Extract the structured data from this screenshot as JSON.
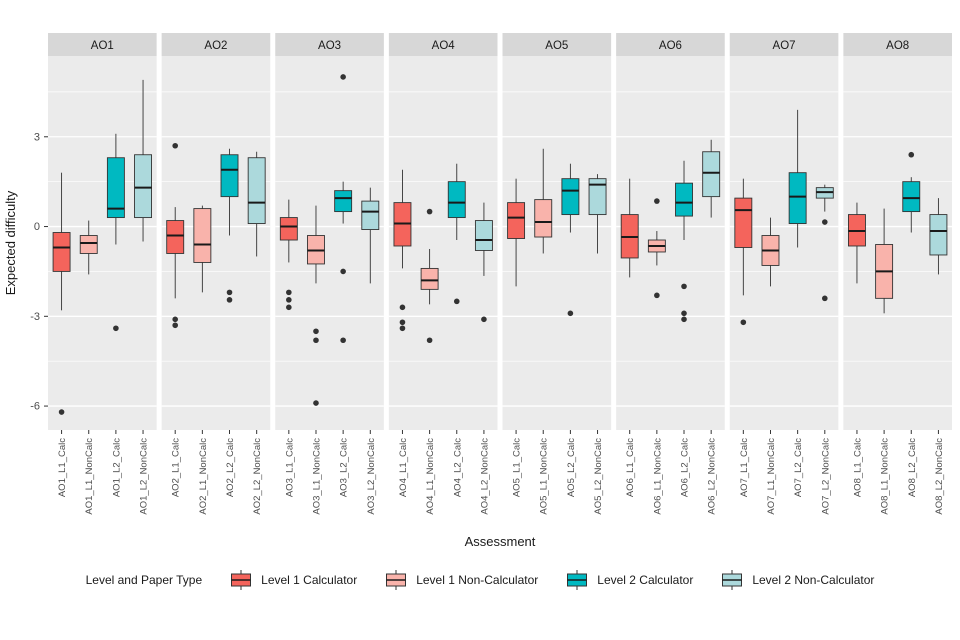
{
  "chart_data": {
    "type": "boxplot",
    "xlabel": "Assessment",
    "ylabel": "Expected difficulty",
    "ylim": [
      -6.8,
      5.7
    ],
    "yticks": [
      3,
      0,
      -3,
      -6
    ],
    "minor_gridlines": [
      4.5,
      1.5,
      -1.5,
      -4.5
    ],
    "panel_bg": "#EBEBEB",
    "strip_bg": "#D7D7D7",
    "gridline_color": "#FFFFFF",
    "box_outline": "#333333",
    "median_color": "#1a1a1a",
    "outlier_color": "#333333",
    "colors": {
      "level1_calc": "#F4645C",
      "level1_noncalc": "#F9B3AB",
      "level2_calc": "#00B9C1",
      "level2_noncalc": "#ACD9DC"
    },
    "facets": [
      {
        "label": "AO1",
        "boxes": [
          {
            "x_label": "AO1_L1_Calc",
            "group": "level1_calc",
            "lower_whisker": -2.8,
            "q1": -1.5,
            "median": -0.7,
            "q3": -0.2,
            "upper_whisker": 1.8,
            "outliers": [
              -6.2
            ]
          },
          {
            "x_label": "AO1_L1_NonCalc",
            "group": "level1_noncalc",
            "lower_whisker": -1.6,
            "q1": -0.9,
            "median": -0.55,
            "q3": -0.3,
            "upper_whisker": 0.2,
            "outliers": []
          },
          {
            "x_label": "AO1_L2_Calc",
            "group": "level2_calc",
            "lower_whisker": -0.6,
            "q1": 0.3,
            "median": 0.6,
            "q3": 2.3,
            "upper_whisker": 3.1,
            "outliers": [
              -3.4
            ]
          },
          {
            "x_label": "AO1_L2_NonCalc",
            "group": "level2_noncalc",
            "lower_whisker": -0.5,
            "q1": 0.3,
            "median": 1.3,
            "q3": 2.4,
            "upper_whisker": 4.9,
            "outliers": []
          }
        ]
      },
      {
        "label": "AO2",
        "boxes": [
          {
            "x_label": "AO2_L1_Calc",
            "group": "level1_calc",
            "lower_whisker": -2.4,
            "q1": -0.9,
            "median": -0.3,
            "q3": 0.2,
            "upper_whisker": 0.65,
            "outliers": [
              2.7,
              -3.1,
              -3.3
            ]
          },
          {
            "x_label": "AO2_L1_NonCalc",
            "group": "level1_noncalc",
            "lower_whisker": -2.2,
            "q1": -1.2,
            "median": -0.6,
            "q3": 0.6,
            "upper_whisker": 0.7,
            "outliers": []
          },
          {
            "x_label": "AO2_L2_Calc",
            "group": "level2_calc",
            "lower_whisker": -0.3,
            "q1": 1.0,
            "median": 1.9,
            "q3": 2.4,
            "upper_whisker": 2.6,
            "outliers": [
              -2.2,
              -2.45
            ]
          },
          {
            "x_label": "AO2_L2_NonCalc",
            "group": "level2_noncalc",
            "lower_whisker": -1.0,
            "q1": 0.1,
            "median": 0.8,
            "q3": 2.3,
            "upper_whisker": 2.5,
            "outliers": []
          }
        ]
      },
      {
        "label": "AO3",
        "boxes": [
          {
            "x_label": "AO3_L1_Calc",
            "group": "level1_calc",
            "lower_whisker": -1.2,
            "q1": -0.45,
            "median": 0.0,
            "q3": 0.3,
            "upper_whisker": 0.9,
            "outliers": [
              -2.2,
              -2.45,
              -2.7
            ]
          },
          {
            "x_label": "AO3_L1_NonCalc",
            "group": "level1_noncalc",
            "lower_whisker": -1.9,
            "q1": -1.25,
            "median": -0.8,
            "q3": -0.3,
            "upper_whisker": 0.7,
            "outliers": [
              -3.5,
              -3.8,
              -5.9
            ]
          },
          {
            "x_label": "AO3_L2_Calc",
            "group": "level2_calc",
            "lower_whisker": 0.1,
            "q1": 0.5,
            "median": 0.95,
            "q3": 1.2,
            "upper_whisker": 1.5,
            "outliers": [
              5.0,
              -1.5,
              -3.8
            ]
          },
          {
            "x_label": "AO3_L2_NonCalc",
            "group": "level2_noncalc",
            "lower_whisker": -1.9,
            "q1": -0.1,
            "median": 0.5,
            "q3": 0.85,
            "upper_whisker": 1.3,
            "outliers": []
          }
        ]
      },
      {
        "label": "AO4",
        "boxes": [
          {
            "x_label": "AO4_L1_Calc",
            "group": "level1_calc",
            "lower_whisker": -1.4,
            "q1": -0.65,
            "median": 0.1,
            "q3": 0.8,
            "upper_whisker": 1.9,
            "outliers": [
              -2.7,
              -3.2,
              -3.4
            ]
          },
          {
            "x_label": "AO4_L1_NonCalc",
            "group": "level1_noncalc",
            "lower_whisker": -2.6,
            "q1": -2.1,
            "median": -1.8,
            "q3": -1.4,
            "upper_whisker": -0.75,
            "outliers": [
              0.5,
              -3.8
            ]
          },
          {
            "x_label": "AO4_L2_Calc",
            "group": "level2_calc",
            "lower_whisker": -0.45,
            "q1": 0.3,
            "median": 0.8,
            "q3": 1.5,
            "upper_whisker": 2.1,
            "outliers": [
              -2.5
            ]
          },
          {
            "x_label": "AO4_L2_NonCalc",
            "group": "level2_noncalc",
            "lower_whisker": -1.65,
            "q1": -0.8,
            "median": -0.45,
            "q3": 0.2,
            "upper_whisker": 0.8,
            "outliers": [
              -3.1
            ]
          }
        ]
      },
      {
        "label": "AO5",
        "boxes": [
          {
            "x_label": "AO5_L1_Calc",
            "group": "level1_calc",
            "lower_whisker": -2.0,
            "q1": -0.4,
            "median": 0.3,
            "q3": 0.8,
            "upper_whisker": 1.6,
            "outliers": []
          },
          {
            "x_label": "AO5_L1_NonCalc",
            "group": "level1_noncalc",
            "lower_whisker": -0.9,
            "q1": -0.35,
            "median": 0.15,
            "q3": 0.9,
            "upper_whisker": 2.6,
            "outliers": []
          },
          {
            "x_label": "AO5_L2_Calc",
            "group": "level2_calc",
            "lower_whisker": -0.2,
            "q1": 0.4,
            "median": 1.2,
            "q3": 1.6,
            "upper_whisker": 2.1,
            "outliers": [
              -2.9
            ]
          },
          {
            "x_label": "AO5_L2_NonCalc",
            "group": "level2_noncalc",
            "lower_whisker": -0.9,
            "q1": 0.4,
            "median": 1.4,
            "q3": 1.6,
            "upper_whisker": 1.75,
            "outliers": []
          }
        ]
      },
      {
        "label": "AO6",
        "boxes": [
          {
            "x_label": "AO6_L1_Calc",
            "group": "level1_calc",
            "lower_whisker": -1.7,
            "q1": -1.05,
            "median": -0.35,
            "q3": 0.4,
            "upper_whisker": 1.6,
            "outliers": []
          },
          {
            "x_label": "AO6_L1_NonCalc",
            "group": "level1_noncalc",
            "lower_whisker": -1.3,
            "q1": -0.85,
            "median": -0.65,
            "q3": -0.45,
            "upper_whisker": -0.15,
            "outliers": [
              0.85,
              -2.3
            ]
          },
          {
            "x_label": "AO6_L2_Calc",
            "group": "level2_calc",
            "lower_whisker": -0.45,
            "q1": 0.35,
            "median": 0.8,
            "q3": 1.45,
            "upper_whisker": 2.2,
            "outliers": [
              -2.0,
              -2.9,
              -3.1
            ]
          },
          {
            "x_label": "AO6_L2_NonCalc",
            "group": "level2_noncalc",
            "lower_whisker": 0.3,
            "q1": 1.0,
            "median": 1.8,
            "q3": 2.5,
            "upper_whisker": 2.9,
            "outliers": []
          }
        ]
      },
      {
        "label": "AO7",
        "boxes": [
          {
            "x_label": "AO7_L1_Calc",
            "group": "level1_calc",
            "lower_whisker": -2.3,
            "q1": -0.7,
            "median": 0.55,
            "q3": 0.95,
            "upper_whisker": 1.6,
            "outliers": [
              -3.2
            ]
          },
          {
            "x_label": "AO7_L1_NonCalc",
            "group": "level1_noncalc",
            "lower_whisker": -2.0,
            "q1": -1.3,
            "median": -0.8,
            "q3": -0.3,
            "upper_whisker": 0.3,
            "outliers": []
          },
          {
            "x_label": "AO7_L2_Calc",
            "group": "level2_calc",
            "lower_whisker": -0.7,
            "q1": 0.1,
            "median": 1.0,
            "q3": 1.8,
            "upper_whisker": 3.9,
            "outliers": []
          },
          {
            "x_label": "AO7_L2_NonCalc",
            "group": "level2_noncalc",
            "lower_whisker": 0.5,
            "q1": 0.95,
            "median": 1.15,
            "q3": 1.3,
            "upper_whisker": 1.4,
            "outliers": [
              0.15,
              -2.4
            ]
          }
        ]
      },
      {
        "label": "AO8",
        "boxes": [
          {
            "x_label": "AO8_L1_Calc",
            "group": "level1_calc",
            "lower_whisker": -1.9,
            "q1": -0.65,
            "median": -0.15,
            "q3": 0.4,
            "upper_whisker": 0.8,
            "outliers": []
          },
          {
            "x_label": "AO8_L1_NonCalc",
            "group": "level1_noncalc",
            "lower_whisker": -2.9,
            "q1": -2.4,
            "median": -1.5,
            "q3": -0.6,
            "upper_whisker": 0.6,
            "outliers": []
          },
          {
            "x_label": "AO8_L2_Calc",
            "group": "level2_calc",
            "lower_whisker": -0.2,
            "q1": 0.5,
            "median": 0.95,
            "q3": 1.5,
            "upper_whisker": 1.65,
            "outliers": [
              2.4
            ]
          },
          {
            "x_label": "AO8_L2_NonCalc",
            "group": "level2_noncalc",
            "lower_whisker": -1.6,
            "q1": -0.95,
            "median": -0.15,
            "q3": 0.4,
            "upper_whisker": 0.95,
            "outliers": []
          }
        ]
      }
    ]
  },
  "legend": {
    "title": "Level and Paper Type",
    "items": [
      {
        "label": "Level 1 Calculator",
        "group": "level1_calc",
        "color": "#F4645C"
      },
      {
        "label": "Level 1 Non-Calculator",
        "group": "level1_noncalc",
        "color": "#F9B3AB"
      },
      {
        "label": "Level 2 Calculator",
        "group": "level2_calc",
        "color": "#00B9C1"
      },
      {
        "label": "Level 2 Non-Calculator",
        "group": "level2_noncalc",
        "color": "#ACD9DC"
      }
    ]
  }
}
